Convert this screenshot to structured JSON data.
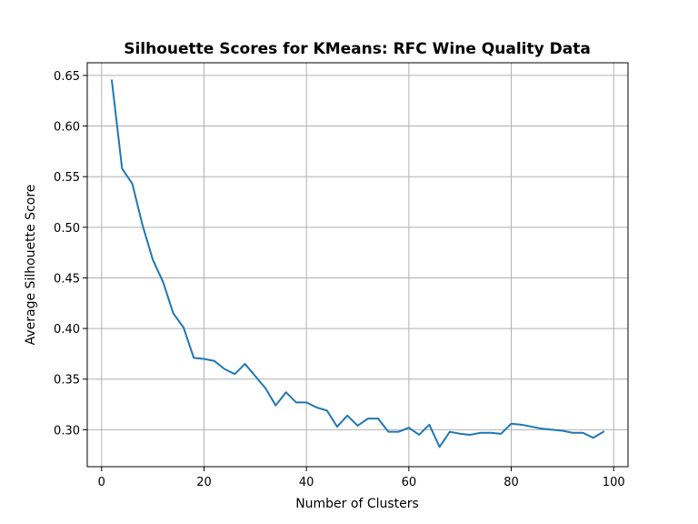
{
  "chart_data": {
    "type": "line",
    "title": "Silhouette Scores for KMeans: RFC Wine Quality Data",
    "xlabel": "Number of Clusters",
    "ylabel": "Average Silhouette Score",
    "xlim": [
      -2.8,
      102.8
    ],
    "ylim": [
      0.2635,
      0.6625
    ],
    "xticks": [
      0,
      20,
      40,
      60,
      80,
      100
    ],
    "yticks": [
      0.3,
      0.35,
      0.4,
      0.45,
      0.5,
      0.55,
      0.6,
      0.65
    ],
    "grid": true,
    "color": "#1f77b4",
    "series": [
      {
        "x": [
          2,
          4,
          6,
          8,
          10,
          12,
          14,
          16,
          18,
          20,
          22,
          24,
          26,
          28,
          30,
          32,
          34,
          36,
          38,
          40,
          42,
          44,
          46,
          48,
          50,
          52,
          54,
          56,
          58,
          60,
          62,
          64,
          66,
          68,
          70,
          72,
          74,
          76,
          78,
          80,
          82,
          84,
          86,
          88,
          90,
          92,
          94,
          96,
          98
        ],
        "values": [
          0.645,
          0.558,
          0.543,
          0.502,
          0.468,
          0.446,
          0.415,
          0.401,
          0.371,
          0.37,
          0.368,
          0.36,
          0.355,
          0.365,
          0.353,
          0.341,
          0.324,
          0.337,
          0.327,
          0.327,
          0.322,
          0.319,
          0.303,
          0.314,
          0.304,
          0.311,
          0.311,
          0.298,
          0.298,
          0.302,
          0.295,
          0.305,
          0.283,
          0.298,
          0.296,
          0.295,
          0.297,
          0.297,
          0.296,
          0.306,
          0.305,
          0.303,
          0.301,
          0.3,
          0.299,
          0.297,
          0.297,
          0.292,
          0.298
        ]
      }
    ]
  }
}
